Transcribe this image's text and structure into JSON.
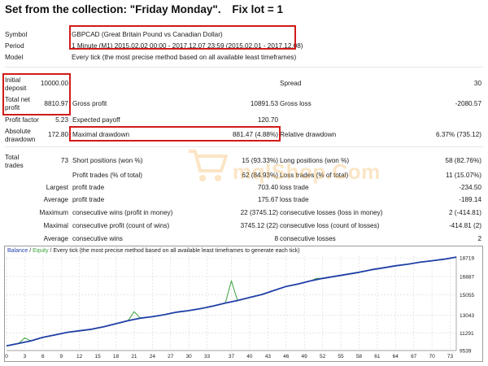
{
  "header": {
    "title": "Set from the collection: \"Friday Monday\".",
    "fixlot": "Fix lot = 1"
  },
  "info": {
    "symbol_label": "Symbol",
    "symbol_value": "GBPCAD (Great Britain Pound vs Canadian Dollar)",
    "period_label": "Period",
    "period_value": "1 Minute (M1) 2015.02.02 00:00 - 2017.12.07 23:59 (2015.02.01 - 2017.12.08)",
    "model_label": "Model",
    "model_value": "Every tick (the most precise method based on all available least timeframes)"
  },
  "stats": {
    "initial_deposit_label_1": "Initial",
    "initial_deposit_label_2": "deposit",
    "initial_deposit_value": "10000.00",
    "spread_label": "Spread",
    "spread_value": "30",
    "total_net_profit_label_1": "Total net",
    "total_net_profit_label_2": "profit",
    "total_net_profit_value": "8810.97",
    "gross_profit_label": "Gross profit",
    "gross_profit_value": "10891.53",
    "gross_loss_label": "Gross loss",
    "gross_loss_value": "-2080.57",
    "profit_factor_label": "Profit factor",
    "profit_factor_value": "5.23",
    "expected_payoff_label": "Expected payoff",
    "expected_payoff_value": "120.70",
    "absolute_drawdown_label_1": "Absolute",
    "absolute_drawdown_label_2": "drawdown",
    "absolute_drawdown_value": "172.80",
    "maximal_drawdown_label": "Maximal drawdown",
    "maximal_drawdown_value": "881.47 (4.88%)",
    "relative_drawdown_label": "Relative drawdown",
    "relative_drawdown_value": "6.37% (735.12)",
    "total_trades_label_1": "Total",
    "total_trades_label_2": "trades",
    "total_trades_value": "73",
    "short_positions_label": "Short positions (won %)",
    "short_positions_value": "15 (93.33%)",
    "long_positions_label": "Long positions (won %)",
    "long_positions_value": "58 (82.76%)",
    "profit_trades_label": "Profit trades (% of total)",
    "profit_trades_value": "62 (84.93%)",
    "loss_trades_label": "Loss trades (% of total)",
    "loss_trades_value": "11 (15.07%)",
    "largest_label": "Largest",
    "largest_profit_label": "profit trade",
    "largest_profit_value": "703.40",
    "largest_loss_label": "loss trade",
    "largest_loss_value": "-234.50",
    "average_label": "Average",
    "average_profit_label": "profit trade",
    "average_profit_value": "175.67",
    "average_loss_label": "loss trade",
    "average_loss_value": "-189.14",
    "maximum_label": "Maximum",
    "max_consec_wins_label": "consecutive wins (profit in money)",
    "max_consec_wins_value": "22 (3745.12)",
    "max_consec_losses_label": "consecutive losses (loss in money)",
    "max_consec_losses_value": "2 (-414.81)",
    "maximal_label": "Maximal",
    "maximal_consec_profit_label": "consecutive profit (count of wins)",
    "maximal_consec_profit_value": "3745.12 (22)",
    "maximal_consec_loss_label": "consecutive loss (count of losses)",
    "maximal_consec_loss_value": "-414.81 (2)",
    "average2_label": "Average",
    "avg_consec_wins_label": "consecutive wins",
    "avg_consec_wins_value": "8",
    "avg_consec_losses_label": "consecutive losses",
    "avg_consec_losses_value": "2"
  },
  "watermark": {
    "text": "mqlShop.Com"
  },
  "chart": {
    "caption_balance": "Balance",
    "caption_sep1": " / ",
    "caption_equity": "Equity",
    "caption_rest": " / Every tick (the most precise method based on all available least timeframes to generate each tick)",
    "colors": {
      "balance": "#1f3fa6",
      "equity": "#3aa23a",
      "grid": "#d8d8d8",
      "box": "#d21a1a"
    }
  },
  "chart_data": {
    "type": "line",
    "x_ticks": [
      0,
      3,
      6,
      9,
      12,
      15,
      18,
      21,
      24,
      27,
      30,
      33,
      37,
      40,
      43,
      46,
      49,
      52,
      55,
      58,
      61,
      64,
      67,
      70,
      73
    ],
    "y_ticks": [
      9539,
      11291,
      13043,
      15055,
      16887,
      18719
    ],
    "ylim": [
      9539,
      18900
    ],
    "xlim": [
      0,
      74
    ],
    "series": [
      {
        "name": "Balance",
        "values": [
          [
            0,
            10000
          ],
          [
            2,
            10250
          ],
          [
            4,
            10500
          ],
          [
            6,
            10850
          ],
          [
            8,
            11100
          ],
          [
            10,
            11350
          ],
          [
            12,
            11500
          ],
          [
            14,
            11650
          ],
          [
            16,
            11900
          ],
          [
            18,
            12200
          ],
          [
            20,
            12500
          ],
          [
            22,
            12750
          ],
          [
            24,
            12900
          ],
          [
            26,
            13100
          ],
          [
            28,
            13350
          ],
          [
            30,
            13500
          ],
          [
            32,
            13700
          ],
          [
            34,
            13950
          ],
          [
            36,
            14250
          ],
          [
            38,
            14500
          ],
          [
            40,
            14800
          ],
          [
            42,
            15100
          ],
          [
            44,
            15500
          ],
          [
            46,
            15900
          ],
          [
            48,
            16150
          ],
          [
            50,
            16450
          ],
          [
            52,
            16700
          ],
          [
            54,
            16900
          ],
          [
            56,
            17100
          ],
          [
            58,
            17300
          ],
          [
            60,
            17550
          ],
          [
            62,
            17750
          ],
          [
            64,
            17950
          ],
          [
            66,
            18100
          ],
          [
            68,
            18300
          ],
          [
            70,
            18450
          ],
          [
            72,
            18600
          ],
          [
            74,
            18810
          ]
        ]
      },
      {
        "name": "Equity",
        "values": [
          [
            0,
            10000
          ],
          [
            2,
            10250
          ],
          [
            3,
            10800
          ],
          [
            4,
            10500
          ],
          [
            6,
            10850
          ],
          [
            8,
            11100
          ],
          [
            10,
            11350
          ],
          [
            12,
            11500
          ],
          [
            14,
            11650
          ],
          [
            16,
            11900
          ],
          [
            18,
            12200
          ],
          [
            20,
            12500
          ],
          [
            21,
            13400
          ],
          [
            22,
            12750
          ],
          [
            24,
            12900
          ],
          [
            26,
            13100
          ],
          [
            28,
            13350
          ],
          [
            30,
            13500
          ],
          [
            32,
            13700
          ],
          [
            34,
            13950
          ],
          [
            36,
            14250
          ],
          [
            37,
            16450
          ],
          [
            38,
            14500
          ],
          [
            40,
            14800
          ],
          [
            42,
            15100
          ],
          [
            44,
            15500
          ],
          [
            46,
            15900
          ],
          [
            48,
            16150
          ],
          [
            50,
            16450
          ],
          [
            51,
            16700
          ],
          [
            52,
            16700
          ],
          [
            54,
            16900
          ],
          [
            56,
            17100
          ],
          [
            58,
            17300
          ],
          [
            60,
            17550
          ],
          [
            62,
            17750
          ],
          [
            64,
            17950
          ],
          [
            66,
            18100
          ],
          [
            68,
            18300
          ],
          [
            70,
            18450
          ],
          [
            72,
            18600
          ],
          [
            74,
            18810
          ]
        ]
      }
    ]
  }
}
